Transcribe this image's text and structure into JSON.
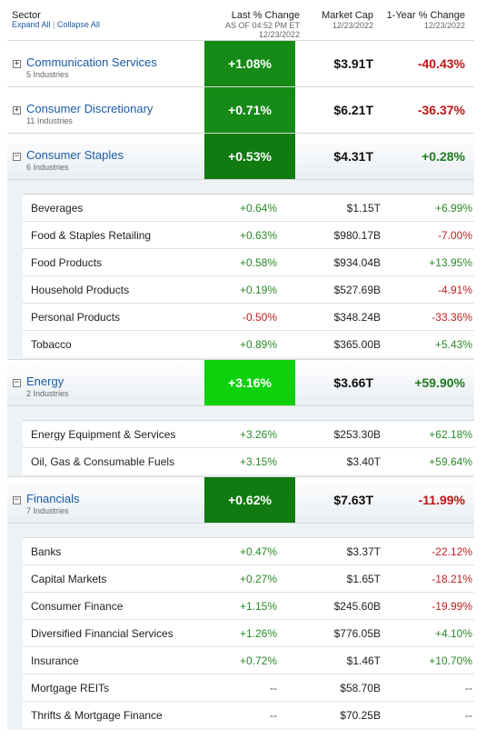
{
  "header": {
    "sector_label": "Sector",
    "expand_all": "Expand All",
    "separator": "|",
    "collapse_all": "Collapse All",
    "last_change": {
      "title": "Last % Change",
      "sub1": "AS OF 04:52 PM ET",
      "sub2": "12/23/2022"
    },
    "market_cap": {
      "title": "Market Cap",
      "sub1": "12/23/2022"
    },
    "year_change": {
      "title": "1-Year % Change",
      "sub1": "12/23/2022"
    }
  },
  "colors": {
    "dark_green": "#168a16",
    "bright_green": "#0ed10e",
    "darker_green": "#117a11",
    "link_blue": "#1a5aa6",
    "positive": "#2a8a2a",
    "negative": "#c02020"
  },
  "sectors": [
    {
      "toggle": "+",
      "name": "Communication Services",
      "count": "5 Industries",
      "change": "+1.08%",
      "market_cap": "$3.91T",
      "year_change": "-40.43%",
      "industries": []
    },
    {
      "toggle": "+",
      "name": "Consumer Discretionary",
      "count": "11 Industries",
      "change": "+0.71%",
      "market_cap": "$6.21T",
      "year_change": "-36.37%",
      "industries": []
    },
    {
      "toggle": "−",
      "name": "Consumer Staples",
      "count": "6 Industries",
      "change": "+0.53%",
      "market_cap": "$4.31T",
      "year_change": "+0.28%",
      "industries": [
        {
          "name": "Beverages",
          "change": "+0.64%",
          "market_cap": "$1.15T",
          "year_change": "+6.99%"
        },
        {
          "name": "Food & Staples Retailing",
          "change": "+0.63%",
          "market_cap": "$980.17B",
          "year_change": "-7.00%"
        },
        {
          "name": "Food Products",
          "change": "+0.58%",
          "market_cap": "$934.04B",
          "year_change": "+13.95%"
        },
        {
          "name": "Household Products",
          "change": "+0.19%",
          "market_cap": "$527.69B",
          "year_change": "-4.91%"
        },
        {
          "name": "Personal Products",
          "change": "-0.50%",
          "market_cap": "$348.24B",
          "year_change": "-33.36%"
        },
        {
          "name": "Tobacco",
          "change": "+0.89%",
          "market_cap": "$365.00B",
          "year_change": "+5.43%"
        }
      ]
    },
    {
      "toggle": "−",
      "name": "Energy",
      "count": "2 Industries",
      "change": "+3.16%",
      "market_cap": "$3.66T",
      "year_change": "+59.90%",
      "industries": [
        {
          "name": "Energy Equipment & Services",
          "change": "+3.26%",
          "market_cap": "$253.30B",
          "year_change": "+62.18%"
        },
        {
          "name": "Oil, Gas & Consumable Fuels",
          "change": "+3.15%",
          "market_cap": "$3.40T",
          "year_change": "+59.64%"
        }
      ]
    },
    {
      "toggle": "−",
      "name": "Financials",
      "count": "7 Industries",
      "change": "+0.62%",
      "market_cap": "$7.63T",
      "year_change": "-11.99%",
      "industries": [
        {
          "name": "Banks",
          "change": "+0.47%",
          "market_cap": "$3.37T",
          "year_change": "-22.12%"
        },
        {
          "name": "Capital Markets",
          "change": "+0.27%",
          "market_cap": "$1.65T",
          "year_change": "-18.21%"
        },
        {
          "name": "Consumer Finance",
          "change": "+1.15%",
          "market_cap": "$245.60B",
          "year_change": "-19.99%"
        },
        {
          "name": "Diversified Financial Services",
          "change": "+1.26%",
          "market_cap": "$776.05B",
          "year_change": "+4.10%"
        },
        {
          "name": "Insurance",
          "change": "+0.72%",
          "market_cap": "$1.46T",
          "year_change": "+10.70%"
        },
        {
          "name": "Mortgage REITs",
          "change": "--",
          "market_cap": "$58.70B",
          "year_change": "--"
        },
        {
          "name": "Thrifts & Mortgage Finance",
          "change": "--",
          "market_cap": "$70.25B",
          "year_change": "--"
        }
      ]
    }
  ]
}
